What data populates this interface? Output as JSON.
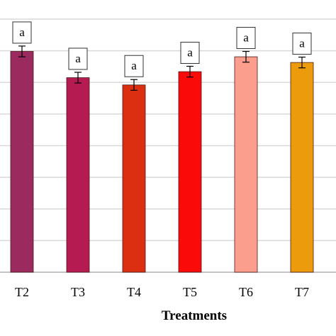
{
  "chart_data": {
    "type": "bar",
    "title": "",
    "xlabel": "Treatments",
    "ylabel": "",
    "ylim": [
      0,
      8
    ],
    "grid": true,
    "categories": [
      "T2",
      "T3",
      "T4",
      "T5",
      "T6",
      "T7"
    ],
    "values": [
      6.98,
      6.15,
      5.92,
      6.34,
      6.81,
      6.63
    ],
    "errors": [
      0.17,
      0.17,
      0.17,
      0.17,
      0.17,
      0.17
    ],
    "significance_labels": [
      "a",
      "a",
      "a",
      "a",
      "a",
      "a"
    ],
    "colors": [
      "#9b2a5f",
      "#b51a50",
      "#dc2e10",
      "#fb0a0a",
      "#fc9e8e",
      "#eb9b0b"
    ]
  }
}
